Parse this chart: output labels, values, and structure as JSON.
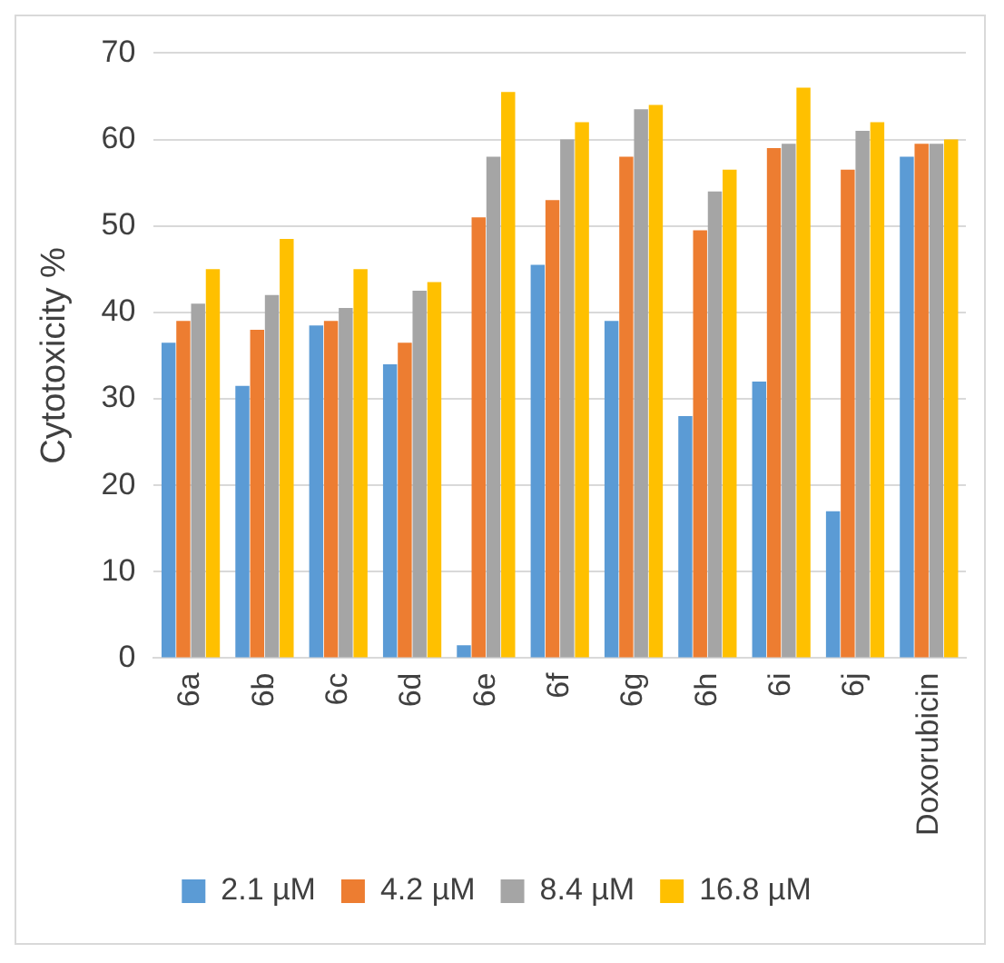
{
  "chart_data": {
    "type": "bar",
    "ylabel": "Cytotoxicity %",
    "categories": [
      "6a",
      "6b",
      "6c",
      "6d",
      "6e",
      "6f",
      "6g",
      "6h",
      "6i",
      "6j",
      "Doxorubicin"
    ],
    "series": [
      {
        "name": "2.1 µM",
        "color": "#5b9bd5",
        "values": [
          36.5,
          31.5,
          38.5,
          34,
          1.5,
          45.5,
          39,
          28,
          32,
          17,
          58
        ]
      },
      {
        "name": "4.2 µM",
        "color": "#ed7d31",
        "values": [
          39,
          38,
          39,
          36.5,
          51,
          53,
          58,
          49.5,
          59,
          56.5,
          59.5
        ]
      },
      {
        "name": "8.4 µM",
        "color": "#a5a5a5",
        "values": [
          41,
          42,
          40.5,
          42.5,
          58,
          60,
          63.5,
          54,
          59.5,
          61,
          59.5
        ]
      },
      {
        "name": "16.8 µM",
        "color": "#ffc000",
        "values": [
          45,
          48.5,
          45,
          43.5,
          65.5,
          62,
          64,
          56.5,
          66,
          62,
          60
        ]
      }
    ],
    "ylim": [
      0,
      70
    ],
    "yticks": [
      0,
      10,
      20,
      30,
      40,
      50,
      60,
      70
    ],
    "grid": "y",
    "legend": "bottom"
  }
}
